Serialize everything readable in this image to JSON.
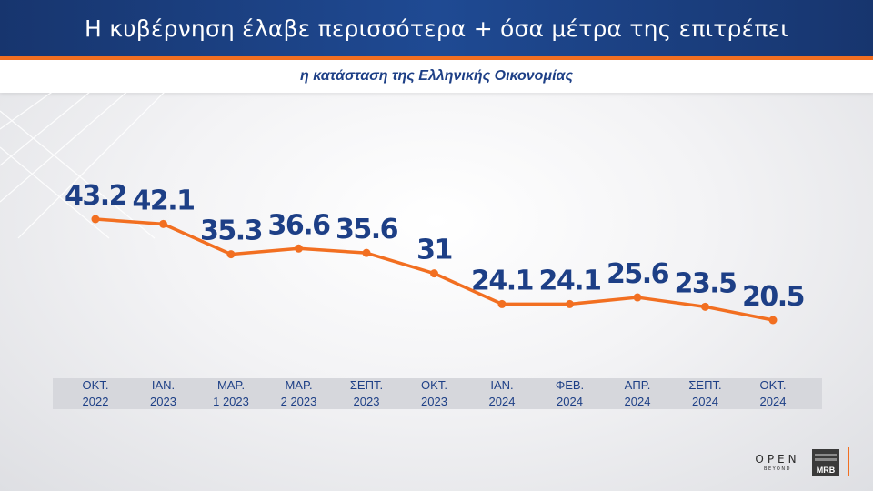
{
  "header": {
    "title": "Η κυβέρνηση έλαβε περισσότερα + όσα μέτρα της επιτρέπει",
    "subtitle": "η κατάσταση της Ελληνικής Οικονομίας"
  },
  "colors": {
    "header_bg": "#1f4a93",
    "accent": "#f26f21",
    "label_text": "#1d3f86"
  },
  "chart_data": {
    "type": "line",
    "categories": [
      [
        "ΟΚΤ.",
        "2022"
      ],
      [
        "ΙΑΝ.",
        "2023"
      ],
      [
        "ΜΑΡ.",
        "1 2023"
      ],
      [
        "ΜΑΡ.",
        "2 2023"
      ],
      [
        "ΣΕΠΤ.",
        "2023"
      ],
      [
        "ΟΚΤ.",
        "2023"
      ],
      [
        "ΙΑΝ.",
        "2024"
      ],
      [
        "ΦΕΒ.",
        "2024"
      ],
      [
        "ΑΠΡ.",
        "2024"
      ],
      [
        "ΣΕΠΤ.",
        "2024"
      ],
      [
        "ΟΚΤ.",
        "2024"
      ]
    ],
    "series": [
      {
        "values": [
          43.2,
          42.1,
          35.3,
          36.6,
          35.6,
          31,
          24.1,
          24.1,
          25.6,
          23.5,
          20.5
        ]
      }
    ],
    "data_labels": [
      "43.2",
      "42.1",
      "35.3",
      "36.6",
      "35.6",
      "31",
      "24.1",
      "24.1",
      "25.6",
      "23.5",
      "20.5"
    ],
    "line_color": "#f26f21",
    "grid": false,
    "legend": "none"
  },
  "branding": {
    "open_word": "OPEN",
    "open_sub": "BEYOND",
    "mrb": "MRB"
  }
}
